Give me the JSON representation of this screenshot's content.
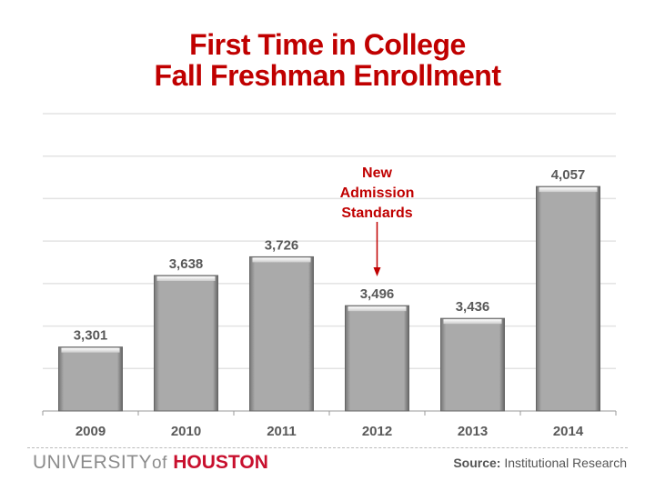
{
  "title": {
    "line1": "First Time in College",
    "line2": "Fall Freshman Enrollment"
  },
  "chart_data": {
    "type": "bar",
    "categories": [
      "2009",
      "2010",
      "2011",
      "2012",
      "2013",
      "2014"
    ],
    "values": [
      3301,
      3638,
      3726,
      3496,
      3436,
      4057
    ],
    "data_labels": [
      "3,301",
      "3,638",
      "3,726",
      "3,496",
      "3,436",
      "4,057"
    ],
    "ylim": [
      3000,
      4400
    ],
    "grid_step": 200,
    "grid": true,
    "y_tick_labels_shown": false,
    "bar_color": "#a9a9a9",
    "annotation": {
      "lines": [
        "New",
        "Admission",
        "Standards"
      ],
      "category": "2012",
      "color": "#c00000"
    }
  },
  "footer": {
    "logo": {
      "university": "UNIVERSITY",
      "of": "of",
      "houston": "HOUSTON"
    },
    "source_label": "Source:",
    "source_value": "Institutional Research"
  },
  "colors": {
    "title": "#c00000",
    "brand_red": "#c8102e"
  }
}
